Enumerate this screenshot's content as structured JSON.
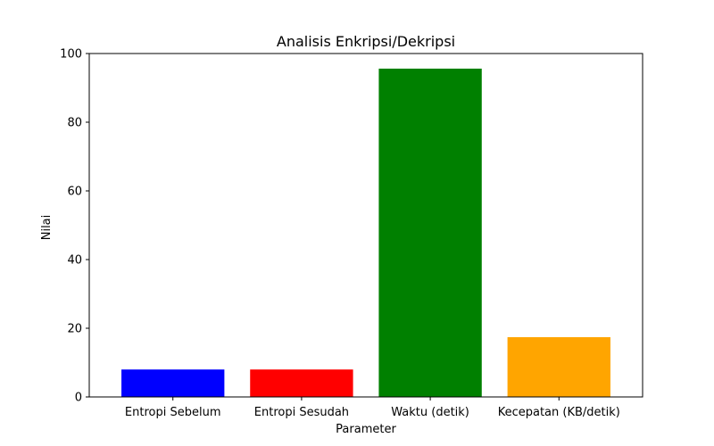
{
  "chart_data": {
    "type": "bar",
    "title": "Analisis Enkripsi/Dekripsi",
    "xlabel": "Parameter",
    "ylabel": "Nilai",
    "categories": [
      "Entropi Sebelum",
      "Entropi Sesudah",
      "Waktu (detik)",
      "Kecepatan (KB/detik)"
    ],
    "values": [
      7.99,
      7.99,
      95.6,
      17.4
    ],
    "colors": [
      "#0000ff",
      "#ff0000",
      "#008000",
      "#ffa500"
    ],
    "ylim": [
      0,
      100
    ],
    "yticks": [
      0,
      20,
      40,
      60,
      80,
      100
    ],
    "ytick_labels": [
      "0",
      "20",
      "40",
      "60",
      "80",
      "100"
    ],
    "grid": false,
    "legend": "none"
  }
}
